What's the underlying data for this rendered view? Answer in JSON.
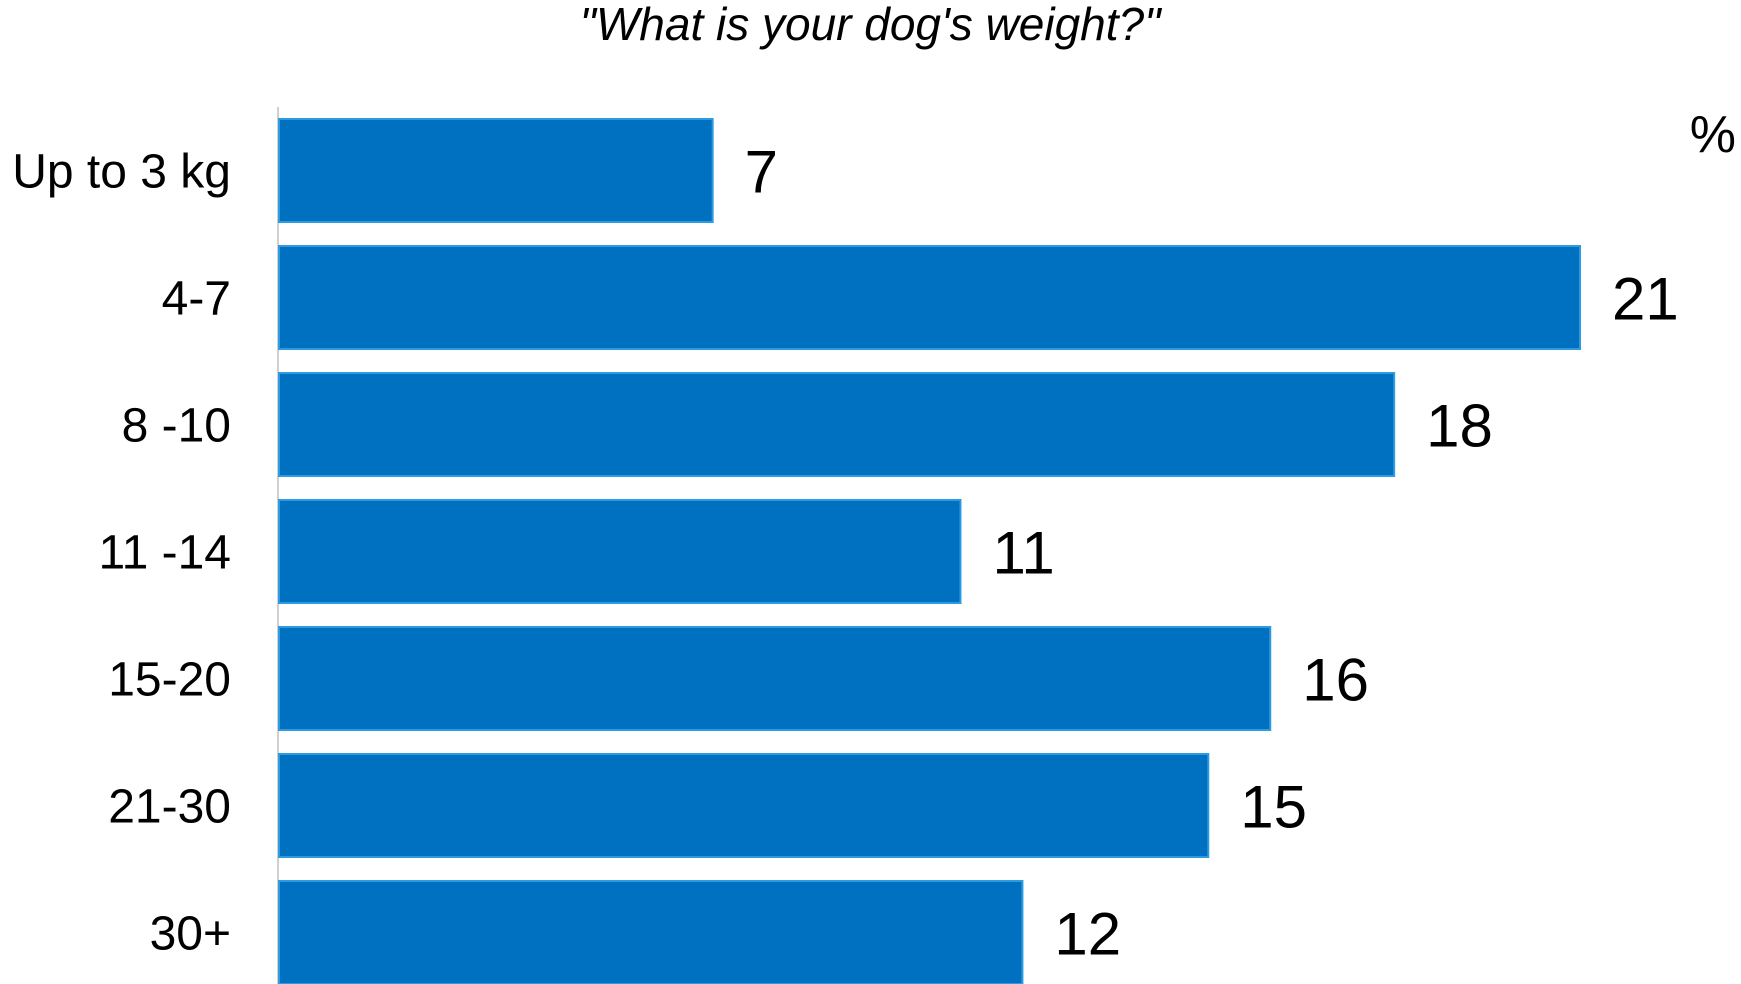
{
  "chart_data": {
    "type": "bar",
    "orientation": "horizontal",
    "title": "\"What is your dog's weight?\"",
    "unit": "%",
    "categories": [
      "Up to 3 kg",
      "4-7",
      "8 -10",
      "11 -14",
      "15-20",
      "21-30",
      "30+"
    ],
    "values": [
      7,
      21,
      18,
      11,
      16,
      15,
      12
    ],
    "xlim": [
      0,
      21
    ],
    "xlabel": "",
    "ylabel": "",
    "grid": false,
    "legend": "none",
    "colors": {
      "bar": "#0070C0",
      "bar_edge": "#2E9BE0",
      "axis": "#D0D0D0",
      "text": "#000000"
    }
  }
}
